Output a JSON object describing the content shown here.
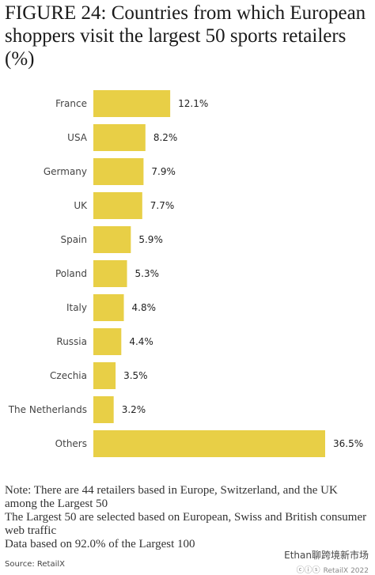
{
  "title": "FIGURE 24: Countries from which European shoppers visit the largest 50 sports retailers (%)",
  "chart_data": {
    "type": "bar",
    "orientation": "horizontal",
    "categories": [
      "France",
      "USA",
      "Germany",
      "UK",
      "Spain",
      "Poland",
      "Italy",
      "Russia",
      "Czechia",
      "The Netherlands",
      "Others"
    ],
    "values": [
      12.1,
      8.2,
      7.9,
      7.7,
      5.9,
      5.3,
      4.8,
      4.4,
      3.5,
      3.2,
      36.5
    ],
    "value_labels": [
      "12.1%",
      "8.2%",
      "7.9%",
      "7.7%",
      "5.9%",
      "5.3%",
      "4.8%",
      "4.4%",
      "3.5%",
      "3.2%",
      "36.5%"
    ],
    "xlim": [
      0,
      36.5
    ],
    "grid": false,
    "bar_color": "#e8cf46"
  },
  "notes": [
    "Note: There are 44 retailers based in Europe, Switzerland, and the UK among the Largest 50",
    "The Largest 50 are selected based on European, Swiss and British consumer web traffic",
    "Data based on 92.0% of the Largest 100"
  ],
  "source": "Source: RetailX",
  "watermark": {
    "text": "Ethan聊跨境新市场",
    "sub": "RetailX 2022"
  }
}
